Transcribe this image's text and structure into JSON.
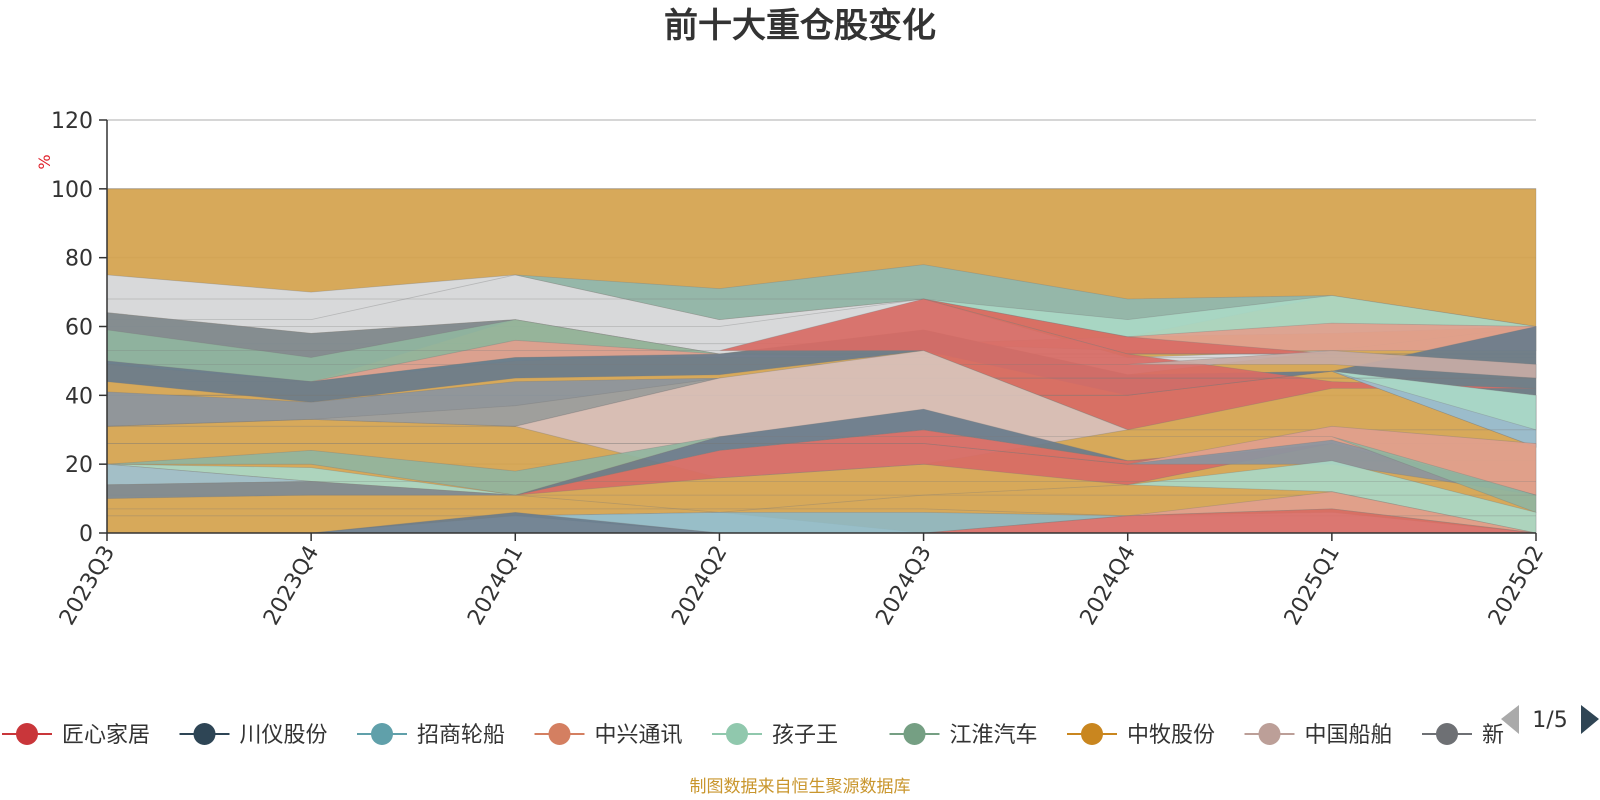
{
  "chart_data": {
    "type": "area",
    "title": "前十大重仓股变化",
    "yunit": "%",
    "ylim": [
      0,
      120
    ],
    "yticks": [
      0,
      20,
      40,
      60,
      80,
      100,
      120
    ],
    "categories": [
      "2023Q3",
      "2023Q4",
      "2024Q1",
      "2024Q2",
      "2024Q3",
      "2024Q4",
      "2025Q1",
      "2025Q2"
    ],
    "layers": [
      {
        "color": "#d4a24c",
        "lower": [
          0,
          0,
          5,
          6,
          0,
          5,
          6,
          0
        ],
        "upper": [
          100,
          100,
          100,
          100,
          100,
          100,
          100,
          100
        ]
      },
      {
        "color": "#d8dde5",
        "lower": [
          64,
          58,
          62,
          52,
          59,
          46,
          53,
          60
        ],
        "upper": [
          75,
          70,
          75,
          62,
          68,
          51,
          53,
          60
        ]
      },
      {
        "color": "#8fb9b0",
        "lower": [
          62,
          62,
          75,
          62,
          68,
          57,
          69,
          60
        ],
        "upper": [
          62,
          62,
          75,
          71,
          78,
          68,
          69,
          60
        ]
      },
      {
        "color": "#a9d8c6",
        "lower": [
          60,
          60,
          60,
          60,
          68,
          57,
          58,
          60
        ],
        "upper": [
          60,
          60,
          60,
          60,
          68,
          62,
          69,
          60
        ]
      },
      {
        "color": "#e1a08e",
        "lower": [
          55,
          55,
          55,
          55,
          55,
          53,
          53,
          53
        ],
        "upper": [
          55,
          55,
          55,
          55,
          55,
          57,
          61,
          60
        ]
      },
      {
        "color": "#d86b65",
        "lower": [
          68,
          68,
          68,
          68,
          68,
          52,
          52,
          52
        ],
        "upper": [
          68,
          68,
          68,
          68,
          68,
          57,
          52,
          52
        ]
      },
      {
        "color": "#7e8b95",
        "lower": [
          50,
          44,
          62,
          52,
          52,
          52,
          52,
          52
        ],
        "upper": [
          64,
          58,
          62,
          52,
          52,
          52,
          52,
          52
        ]
      },
      {
        "color": "#90b5a0",
        "lower": [
          49,
          44,
          50,
          52,
          52,
          52,
          52,
          52
        ],
        "upper": [
          59,
          51,
          62,
          52,
          52,
          52,
          52,
          52
        ]
      },
      {
        "color": "#e1a08e",
        "lower": [
          44,
          44,
          51,
          51,
          51,
          51,
          51,
          51
        ],
        "upper": [
          44,
          44,
          56,
          52,
          51,
          51,
          51,
          51
        ]
      },
      {
        "color": "#697c8c",
        "lower": [
          44,
          38,
          45,
          46,
          53,
          40,
          47,
          25
        ],
        "upper": [
          50,
          44,
          51,
          52,
          59,
          46,
          47,
          60
        ]
      },
      {
        "color": "#d86b65",
        "lower": [
          53,
          53,
          53,
          53,
          53,
          30,
          42,
          42
        ],
        "upper": [
          53,
          53,
          53,
          53,
          68,
          52,
          44,
          42
        ]
      },
      {
        "color": "#9ec1d0",
        "lower": [
          40,
          40,
          40,
          40,
          40,
          40,
          47,
          25
        ],
        "upper": [
          40,
          40,
          40,
          40,
          40,
          40,
          47,
          40
        ]
      },
      {
        "color": "#a9d8c6",
        "lower": [
          40,
          40,
          40,
          40,
          40,
          40,
          47,
          30
        ],
        "upper": [
          40,
          40,
          40,
          40,
          40,
          40,
          47,
          40
        ]
      },
      {
        "color": "#c7aba5",
        "lower": [
          49,
          49,
          49,
          49,
          49,
          49,
          49,
          45
        ],
        "upper": [
          49,
          49,
          49,
          49,
          49,
          49,
          53,
          49
        ]
      },
      {
        "color": "#8b959f",
        "lower": [
          31,
          33,
          31,
          45,
          45,
          45,
          45,
          45
        ],
        "upper": [
          41,
          38,
          44,
          45,
          45,
          45,
          45,
          45
        ]
      },
      {
        "color": "#a1a09c",
        "lower": [
          31,
          33,
          31,
          45,
          45,
          45,
          45,
          45
        ],
        "upper": [
          31,
          33,
          37,
          45,
          45,
          45,
          45,
          45
        ]
      },
      {
        "color": "#d8c0bc",
        "lower": [
          31,
          31,
          31,
          16,
          20,
          30,
          30,
          30
        ],
        "upper": [
          31,
          31,
          31,
          45,
          53,
          30,
          30,
          30
        ]
      },
      {
        "color": "#d86b65",
        "lower": [
          11,
          11,
          11,
          16,
          20,
          14,
          26,
          26
        ],
        "upper": [
          11,
          11,
          11,
          24,
          30,
          21,
          26,
          26
        ]
      },
      {
        "color": "#697c8c",
        "lower": [
          11,
          11,
          11,
          24,
          30,
          21,
          21,
          21
        ],
        "upper": [
          11,
          11,
          11,
          28,
          36,
          21,
          21,
          21
        ]
      },
      {
        "color": "#e1a08e",
        "lower": [
          26,
          26,
          26,
          26,
          26,
          20,
          26,
          11
        ],
        "upper": [
          26,
          26,
          26,
          26,
          26,
          20,
          31,
          26
        ]
      },
      {
        "color": "#8b959f",
        "lower": [
          26,
          26,
          26,
          26,
          26,
          20,
          20,
          11
        ],
        "upper": [
          26,
          26,
          26,
          26,
          26,
          20,
          27,
          11
        ]
      },
      {
        "color": "#90b5a0",
        "lower": [
          20,
          20,
          11,
          28,
          28,
          28,
          28,
          6
        ],
        "upper": [
          20,
          24,
          18,
          28,
          28,
          28,
          28,
          11
        ]
      },
      {
        "color": "#a9d8c6",
        "lower": [
          20,
          15,
          11,
          6,
          11,
          14,
          12,
          0
        ],
        "upper": [
          20,
          19,
          11,
          6,
          11,
          14,
          21,
          6
        ]
      },
      {
        "color": "#9ec1d0",
        "lower": [
          14,
          15,
          15,
          15,
          15,
          15,
          15,
          15
        ],
        "upper": [
          20,
          15,
          15,
          15,
          15,
          15,
          15,
          15
        ]
      },
      {
        "color": "#7e8b95",
        "lower": [
          10,
          11,
          11,
          11,
          11,
          11,
          11,
          11
        ],
        "upper": [
          14,
          15,
          11,
          11,
          11,
          11,
          11,
          11
        ]
      },
      {
        "color": "#e1a08e",
        "lower": [
          7,
          7,
          7,
          7,
          7,
          5,
          7,
          0
        ],
        "upper": [
          7,
          7,
          7,
          7,
          7,
          5,
          12,
          0
        ]
      },
      {
        "color": "#8fb9c3",
        "lower": [
          5,
          5,
          5,
          0,
          0,
          5,
          5,
          5
        ],
        "upper": [
          5,
          5,
          5,
          6,
          6,
          5,
          5,
          5
        ]
      },
      {
        "color": "#d86b65",
        "lower": [
          0,
          0,
          0,
          0,
          0,
          0,
          0,
          0
        ],
        "upper": [
          0,
          0,
          0,
          0,
          0,
          5,
          7,
          0
        ]
      },
      {
        "color": "#697c8c",
        "lower": [
          0,
          0,
          0,
          0,
          0,
          0,
          0,
          0
        ],
        "upper": [
          0,
          0,
          6,
          0,
          0,
          0,
          0,
          0
        ]
      }
    ],
    "legend": [
      {
        "name": "匠心家居",
        "color": "#c9363a"
      },
      {
        "name": "川仪股份",
        "color": "#2e4555"
      },
      {
        "name": "招商轮船",
        "color": "#60a0aa"
      },
      {
        "name": "中兴通讯",
        "color": "#d47f61"
      },
      {
        "name": "孩子王",
        "color": "#90c8ad"
      },
      {
        "name": "江淮汽车",
        "color": "#759f83"
      },
      {
        "name": "中牧股份",
        "color": "#c9861f"
      },
      {
        "name": "中国船舶",
        "color": "#bc9f98"
      },
      {
        "name": "新",
        "color": "#6e7074"
      }
    ],
    "legend_placement": "bottom",
    "grid": true
  },
  "legend_page": "1/5",
  "source_note": "制图数据来自恒生聚源数据库"
}
